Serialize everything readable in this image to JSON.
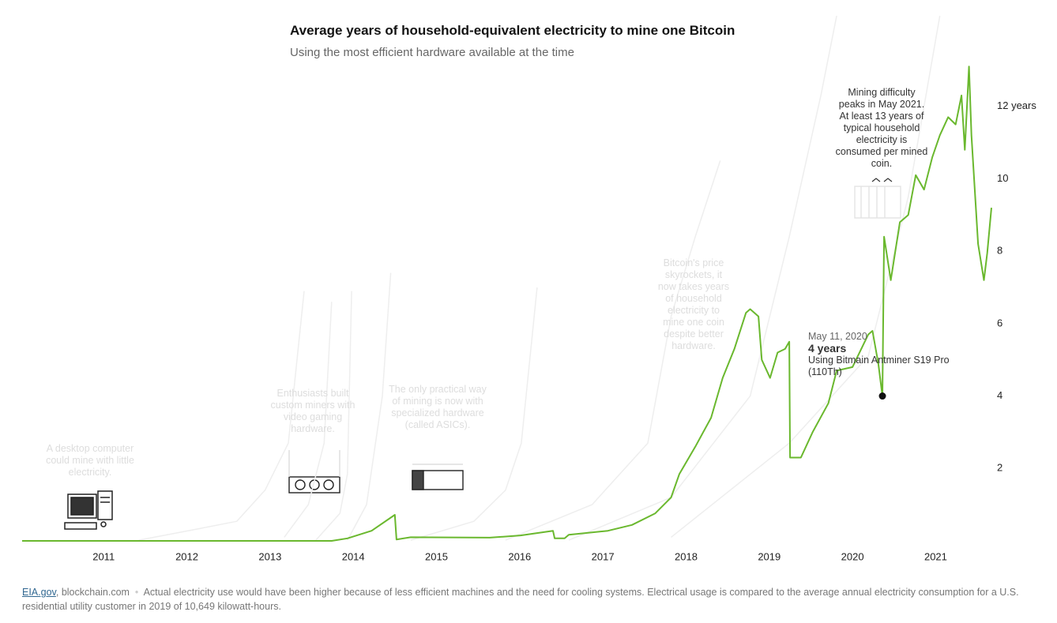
{
  "chart_data": {
    "type": "line",
    "title": "Average years of household-equivalent electricity to mine one Bitcoin",
    "subtitle": "Using the most efficient hardware available at the time",
    "xlim": [
      2010.02,
      2021.67
    ],
    "xticks": [
      2011,
      2012,
      2013,
      2014,
      2015,
      2016,
      2017,
      2018,
      2019,
      2020,
      2021
    ],
    "ylim": [
      0,
      14.5
    ],
    "yticks": [
      2,
      4,
      6,
      8,
      10,
      {
        "value": 12,
        "label": "12 years"
      }
    ],
    "series": [
      {
        "color": "#eeeeee",
        "x": [
          2011.42,
          2012.13,
          2012.6,
          2012.94,
          2013.22,
          2013.41
        ],
        "values": [
          0.02,
          0.33,
          0.54,
          1.4,
          2.7,
          6.9
        ]
      },
      {
        "color": "#eeeeee",
        "x": [
          2013.17,
          2013.46,
          2013.65,
          2013.74
        ],
        "values": [
          0.1,
          1.0,
          2.7,
          6.6
        ]
      },
      {
        "color": "#eeeeee",
        "x": [
          2013.55,
          2013.84,
          2013.93,
          2013.98
        ],
        "values": [
          0.02,
          0.76,
          1.85,
          6.9
        ]
      },
      {
        "color": "#eeeeee",
        "x": [
          2013.93,
          2014.16,
          2014.35,
          2014.45
        ],
        "values": [
          0.02,
          1.0,
          4.0,
          7.4
        ]
      },
      {
        "color": "#eeeeee",
        "x": [
          2014.69,
          2015.45,
          2015.83,
          2016.02,
          2016.21
        ],
        "values": [
          0.02,
          0.54,
          1.4,
          2.7,
          7.0
        ]
      },
      {
        "color": "#eeeeee",
        "x": [
          2015.83,
          2016.87,
          2017.54,
          2017.82,
          2018.11,
          2018.41
        ],
        "values": [
          0.02,
          1.0,
          2.7,
          6.2,
          8.4,
          10.5
        ]
      },
      {
        "color": "#eeeeee",
        "x": [
          2016.59,
          2017.82,
          2018.77,
          2019.24,
          2019.62,
          2019.81
        ],
        "values": [
          0.02,
          1.2,
          4.0,
          8.4,
          12.3,
          14.5
        ]
      },
      {
        "color": "#eeeeee",
        "x": [
          2017.82,
          2019.24,
          2020.19,
          2020.67,
          2021.05
        ],
        "values": [
          0.1,
          2.7,
          5.1,
          9.5,
          14.5
        ]
      },
      {
        "color": "#6ab82e",
        "x": [
          2010.02,
          2013.74,
          2013.93,
          2014.22,
          2014.5,
          2014.52,
          2014.69,
          2015.64,
          2016.01,
          2016.4,
          2016.42,
          2016.54,
          2016.59,
          2017.06,
          2017.35,
          2017.63,
          2017.82,
          2017.92,
          2018.11,
          2018.3,
          2018.44,
          2018.58,
          2018.72,
          2018.77,
          2018.87,
          2018.91,
          2019.01,
          2019.1,
          2019.19,
          2019.24,
          2019.25,
          2019.38,
          2019.52,
          2019.71,
          2019.81,
          2020.0,
          2020.19,
          2020.24,
          2020.31,
          2020.36,
          2020.38,
          2020.46,
          2020.57,
          2020.67,
          2020.76,
          2020.86,
          2020.96,
          2021.05,
          2021.15,
          2021.24,
          2021.31,
          2021.35,
          2021.4,
          2021.43,
          2021.51,
          2021.58,
          2021.62,
          2021.67
        ],
        "values": [
          0,
          0,
          0.07,
          0.28,
          0.72,
          0.04,
          0.1,
          0.09,
          0.15,
          0.28,
          0.07,
          0.07,
          0.17,
          0.28,
          0.44,
          0.76,
          1.2,
          1.85,
          2.6,
          3.4,
          4.5,
          5.3,
          6.3,
          6.4,
          6.2,
          5.0,
          4.5,
          5.2,
          5.3,
          5.5,
          2.3,
          2.3,
          3.0,
          3.8,
          4.7,
          4.8,
          5.7,
          5.8,
          4.9,
          4.0,
          8.4,
          7.2,
          8.8,
          9.0,
          10.1,
          9.7,
          10.6,
          11.2,
          11.7,
          11.5,
          12.3,
          10.8,
          13.1,
          11.2,
          8.2,
          7.2,
          7.95,
          9.2
        ]
      }
    ],
    "highlight": {
      "label": "May 11, 2020",
      "x": 2020.36,
      "values": [
        4
      ],
      "value_labels": [
        "4 years"
      ],
      "note": "Using Bitmain Antminer S19 Pro (110Th)"
    },
    "annotations": [
      "A desktop computer could mine with little electricity.",
      "Enthusiasts built custom miners with video gaming hardware.",
      "The only practical way of mining is now with specialized hardware (called ASICs).",
      "Bitcoin's price skyrockets, it now takes years of household electricity to mine one coin despite better hardware.",
      "Mining difficulty peaks in May 2021. At least 13 years of typical household electricity is consumed per mined coin."
    ],
    "source": [
      "EIA.gov",
      "blockchain.com"
    ],
    "note": "Actual electricity use would have been higher because of less efficient machines and the need for cooling systems. Electrical usage is compared to the average annual electricity consumption for a U.S. residential utility customer in 2019 of 10,649 kilowatt-hours."
  }
}
